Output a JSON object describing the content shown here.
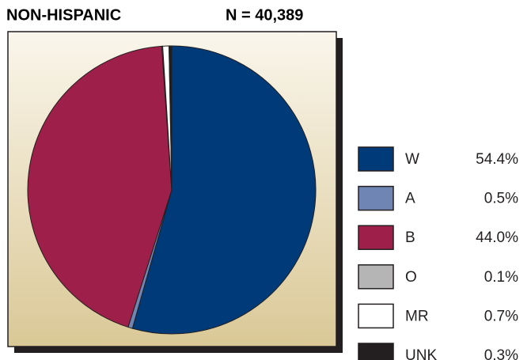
{
  "chart_data": {
    "type": "pie",
    "title": "NON-HISPANIC",
    "subtitle": "N = 40,389",
    "categories": [
      "W",
      "A",
      "B",
      "O",
      "MR",
      "UNK"
    ],
    "values": [
      54.4,
      0.5,
      44.0,
      0.1,
      0.7,
      0.3
    ],
    "value_labels": [
      "54.4%",
      "0.5%",
      "44.0%",
      "0.1%",
      "0.7%",
      "0.3%"
    ],
    "colors": [
      "#003a78",
      "#6f86b4",
      "#9e1f4a",
      "#b5b5b5",
      "#ffffff",
      "#231f20"
    ],
    "legend": "right"
  }
}
